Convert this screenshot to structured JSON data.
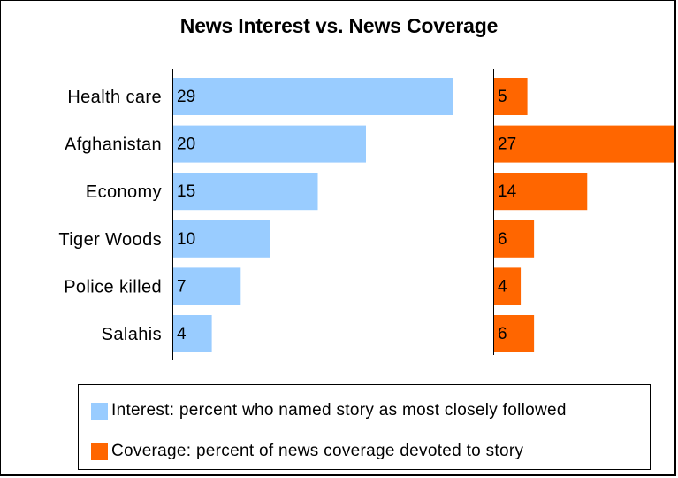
{
  "chart_data": {
    "type": "bar",
    "title": "News Interest vs. News Coverage",
    "categories": [
      "Health care",
      "Afghanistan",
      "Economy",
      "Tiger Woods",
      "Police killed",
      "Salahis"
    ],
    "series": [
      {
        "name": "Interest: percent who named story as most closely followed",
        "values": [
          29,
          20,
          15,
          10,
          7,
          4
        ],
        "color": "#99ccff"
      },
      {
        "name": "Coverage: percent of news coverage devoted to story",
        "values": [
          5,
          27,
          14,
          6,
          4,
          6
        ],
        "color": "#ff6600"
      }
    ],
    "grid": false,
    "legend_position": "bottom"
  }
}
